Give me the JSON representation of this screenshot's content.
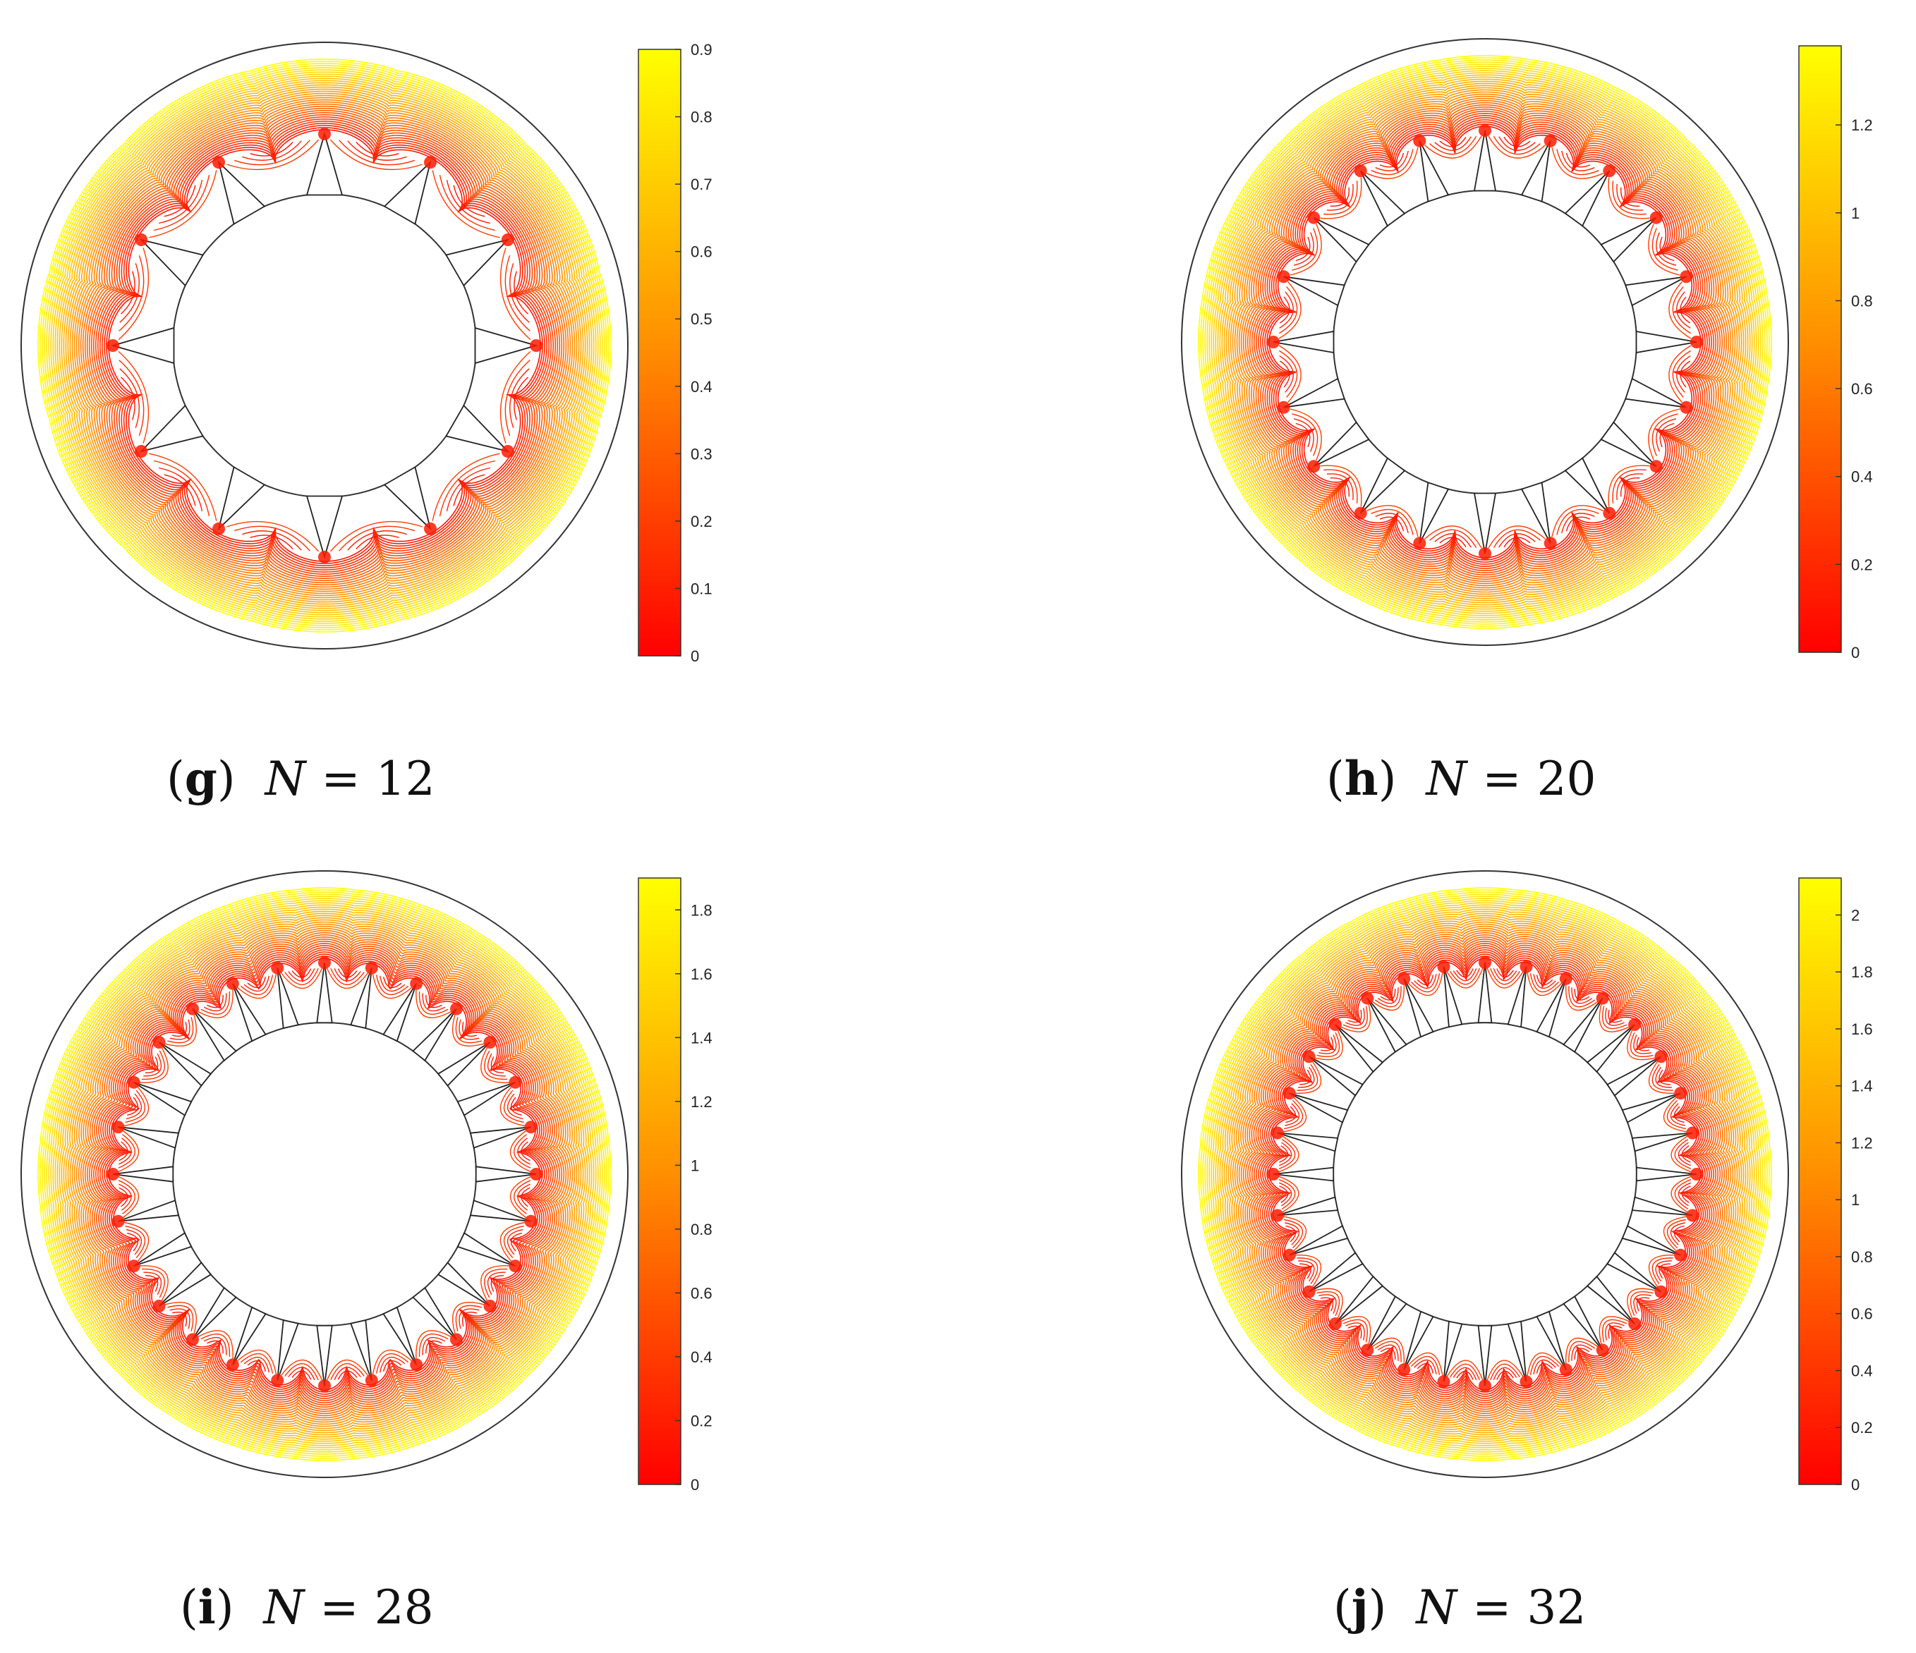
{
  "chart_data": [
    {
      "type": "contour",
      "panel_letter": "g",
      "caption_var": "N",
      "caption_eq": "=",
      "caption_value": "12",
      "N": 12,
      "colormap": [
        "#ff0000",
        "#ff8c00",
        "#ffff00"
      ],
      "colorbar": {
        "min": 0,
        "max": 0.9,
        "ticks": [
          0,
          0.1,
          0.2,
          0.3,
          0.4,
          0.5,
          0.6,
          0.7,
          0.8,
          0.9
        ],
        "tick_labels": [
          "0",
          "0.1",
          "0.2",
          "0.3",
          "0.4",
          "0.5",
          "0.6",
          "0.7",
          "0.8",
          "0.9"
        ]
      }
    },
    {
      "type": "contour",
      "panel_letter": "h",
      "caption_var": "N",
      "caption_eq": "=",
      "caption_value": "20",
      "N": 20,
      "colormap": [
        "#ff0000",
        "#ff8c00",
        "#ffff00"
      ],
      "colorbar": {
        "min": 0,
        "max": 1.38,
        "ticks": [
          0,
          0.2,
          0.4,
          0.6,
          0.8,
          1,
          1.2
        ],
        "tick_labels": [
          "0",
          "0.2",
          "0.4",
          "0.6",
          "0.8",
          "1",
          "1.2"
        ]
      }
    },
    {
      "type": "contour",
      "panel_letter": "i",
      "caption_var": "N",
      "caption_eq": "=",
      "caption_value": "28",
      "N": 28,
      "colormap": [
        "#ff0000",
        "#ff8c00",
        "#ffff00"
      ],
      "colorbar": {
        "min": 0,
        "max": 1.9,
        "ticks": [
          0,
          0.2,
          0.4,
          0.6,
          0.8,
          1,
          1.2,
          1.4,
          1.6,
          1.8
        ],
        "tick_labels": [
          "0",
          "0.2",
          "0.4",
          "0.6",
          "0.8",
          "1",
          "1.2",
          "1.4",
          "1.6",
          "1.8"
        ]
      }
    },
    {
      "type": "contour",
      "panel_letter": "j",
      "caption_var": "N",
      "caption_eq": "=",
      "caption_value": "32",
      "N": 32,
      "colormap": [
        "#ff0000",
        "#ff8c00",
        "#ffff00"
      ],
      "colorbar": {
        "min": 0,
        "max": 2.13,
        "ticks": [
          0,
          0.2,
          0.4,
          0.6,
          0.8,
          1,
          1.2,
          1.4,
          1.6,
          1.8,
          2
        ],
        "tick_labels": [
          "0",
          "0.2",
          "0.4",
          "0.6",
          "0.8",
          "1",
          "1.2",
          "1.4",
          "1.6",
          "1.8",
          "2"
        ]
      }
    }
  ]
}
